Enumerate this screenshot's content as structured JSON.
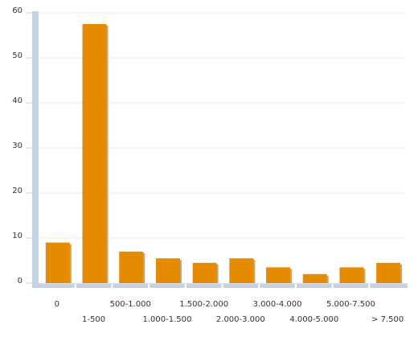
{
  "chart_data": {
    "type": "bar",
    "categories": [
      "0",
      "1-500",
      "500-1.000",
      "1.000-1.500",
      "1.500-2.000",
      "2.000-3.000",
      "3.000-4.000",
      "4.000-5.000",
      "5.000-7.500",
      "> 7.500"
    ],
    "values": [
      9,
      57.5,
      7,
      5.5,
      4.5,
      5.5,
      3.5,
      2,
      3.5,
      4.5
    ],
    "color": "#e68a00",
    "ylim": [
      0,
      60
    ],
    "yticks": [
      0,
      10,
      20,
      30,
      40,
      50,
      60
    ],
    "grid": true
  }
}
